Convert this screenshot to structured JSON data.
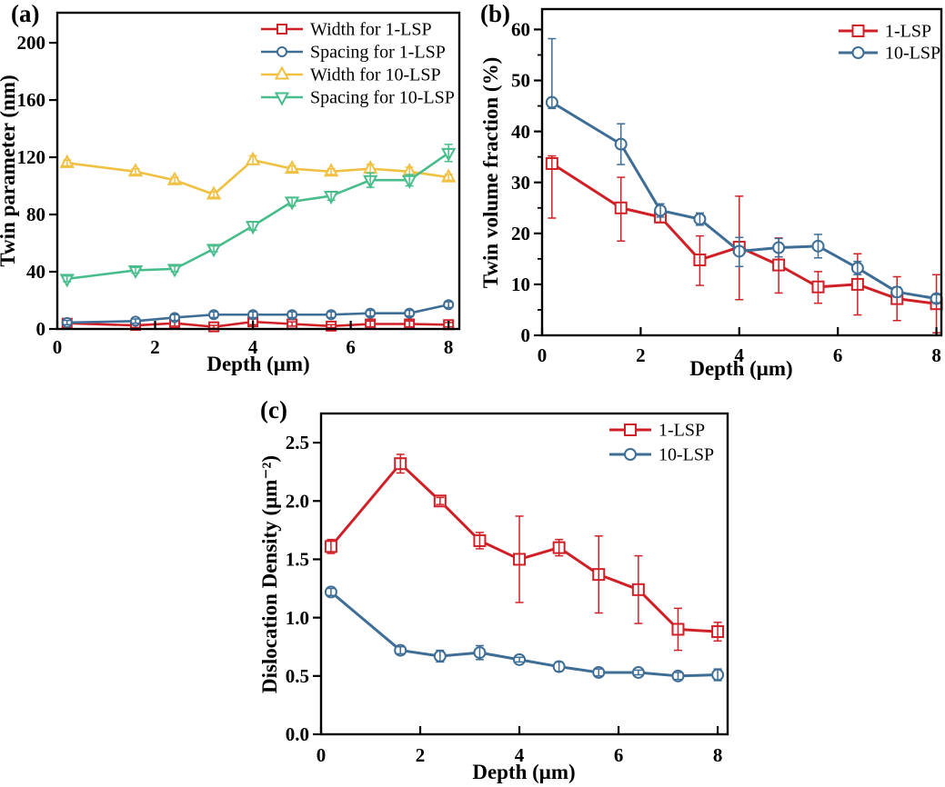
{
  "figure": {
    "background": "#ffffff",
    "text_color": "#000000"
  },
  "chart_data": [
    {
      "id": "a",
      "panel_label": "(a)",
      "type": "line",
      "title": "",
      "xlabel": "Depth (μm)",
      "ylabel": "Twin parameter (nm)",
      "xlim": [
        0,
        8.22
      ],
      "ylim": [
        0,
        221
      ],
      "xticks": {
        "major": [
          0,
          2,
          4,
          6,
          8
        ],
        "labels": [
          "0",
          "2",
          "4",
          "6",
          "8"
        ],
        "minor": []
      },
      "yticks": {
        "major": [
          0,
          40,
          80,
          120,
          160,
          200
        ],
        "labels": [
          "0",
          "40",
          "80",
          "120",
          "160",
          "200"
        ],
        "minor": []
      },
      "grid": false,
      "legend_position": "top-right",
      "x": [
        0.2,
        1.6,
        2.4,
        3.2,
        4.0,
        4.8,
        5.6,
        6.4,
        7.2,
        8.0
      ],
      "series": [
        {
          "name": "Width for 1-LSP",
          "color": "#d02027",
          "marker": "square",
          "values": [
            4,
            2.5,
            4,
            1.5,
            5,
            3.5,
            2,
            3.5,
            3.5,
            3
          ],
          "err_up": [
            1.5,
            1.5,
            2,
            1,
            2,
            1.5,
            1,
            2,
            2,
            1.5
          ],
          "err_down": [
            1.5,
            1.5,
            2,
            1,
            2,
            1.5,
            1,
            2,
            2,
            1.5
          ]
        },
        {
          "name": "Spacing for 1-LSP",
          "color": "#3e6d95",
          "marker": "circle",
          "values": [
            4.5,
            5.5,
            8,
            10,
            10,
            10,
            10,
            11,
            11,
            17
          ],
          "err_up": [
            1.5,
            1.5,
            2,
            2,
            2,
            2,
            2,
            2,
            2,
            2
          ],
          "err_down": [
            1.5,
            1.5,
            2,
            2,
            2,
            2,
            2,
            2,
            2,
            2
          ]
        },
        {
          "name": "Width for 10-LSP",
          "color": "#f0c042",
          "marker": "triangle-up",
          "values": [
            116,
            110,
            104,
            94,
            118,
            112,
            110,
            112,
            110,
            106
          ],
          "err_up": [
            2,
            2,
            2,
            2,
            3,
            2,
            2,
            3,
            3,
            2
          ],
          "err_down": [
            2,
            2,
            2,
            2,
            3,
            2,
            2,
            3,
            3,
            2
          ]
        },
        {
          "name": "Spacing for 10-LSP",
          "color": "#48bd8b",
          "marker": "triangle-down",
          "values": [
            35,
            41,
            42,
            56,
            72,
            89,
            93,
            104,
            104,
            123
          ],
          "err_up": [
            2,
            2,
            2,
            2,
            3,
            3,
            3,
            5,
            4,
            6
          ],
          "err_down": [
            2,
            2,
            2,
            2,
            3,
            3,
            3,
            5,
            4,
            6
          ]
        }
      ]
    },
    {
      "id": "b",
      "panel_label": "(b)",
      "type": "line",
      "title": "",
      "xlabel": "Depth (μm)",
      "ylabel": "Twin volume fraction (%)",
      "xlim": [
        0,
        8.1
      ],
      "ylim": [
        0,
        64
      ],
      "xticks": {
        "major": [
          0,
          2,
          4,
          6,
          8
        ],
        "labels": [
          "0",
          "2",
          "4",
          "6",
          "8"
        ],
        "minor": []
      },
      "yticks": {
        "major": [
          0,
          10,
          20,
          30,
          40,
          50,
          60
        ],
        "labels": [
          "0",
          "10",
          "20",
          "30",
          "40",
          "50",
          "60"
        ],
        "minor": [
          5,
          15,
          25,
          35,
          45,
          55
        ]
      },
      "grid": false,
      "legend_position": "top-right",
      "x": [
        0.2,
        1.6,
        2.4,
        3.2,
        4.0,
        4.8,
        5.6,
        6.4,
        7.2,
        8.0
      ],
      "series": [
        {
          "name": "1-LSP",
          "color": "#d02027",
          "marker": "square",
          "values": [
            33.7,
            25.0,
            23.2,
            14.8,
            17.3,
            13.8,
            9.5,
            10.0,
            7.2,
            6.2
          ],
          "err_up": [
            1.5,
            6.0,
            1.0,
            4.7,
            10.0,
            5.3,
            3.0,
            6.0,
            4.3,
            5.7
          ],
          "err_down": [
            10.7,
            6.5,
            1.0,
            5.0,
            10.3,
            5.5,
            3.2,
            6.0,
            4.3,
            5.7
          ]
        },
        {
          "name": "10-LSP",
          "color": "#3e6d95",
          "marker": "circle",
          "values": [
            45.7,
            37.5,
            24.5,
            22.8,
            16.5,
            17.2,
            17.5,
            13.2,
            8.5,
            7.2
          ],
          "err_up": [
            12.5,
            4.0,
            1.3,
            1.2,
            2.7,
            1.8,
            2.3,
            1.3,
            1.0,
            0.8
          ],
          "err_down": [
            1.2,
            4.0,
            1.3,
            1.2,
            3.0,
            1.8,
            2.3,
            1.3,
            1.0,
            0.8
          ]
        }
      ]
    },
    {
      "id": "c",
      "panel_label": "(c)",
      "type": "line",
      "title": "",
      "xlabel": "Depth (μm)",
      "ylabel": "Dislocation Density (μm⁻²)",
      "xlim": [
        0,
        8.2
      ],
      "ylim": [
        0,
        2.75
      ],
      "xticks": {
        "major": [
          0,
          2,
          4,
          6,
          8
        ],
        "labels": [
          "0",
          "2",
          "4",
          "6",
          "8"
        ],
        "minor": []
      },
      "yticks": {
        "major": [
          0,
          0.5,
          1.0,
          1.5,
          2.0,
          2.5
        ],
        "labels": [
          "0.0",
          "0.5",
          "1.0",
          "1.5",
          "2.0",
          "2.5"
        ],
        "minor": []
      },
      "grid": false,
      "legend_position": "top-right",
      "x": [
        0.2,
        1.6,
        2.4,
        3.2,
        4.0,
        4.8,
        5.6,
        6.4,
        7.2,
        8.0
      ],
      "series": [
        {
          "name": "1-LSP",
          "color": "#d02027",
          "marker": "square",
          "values": [
            1.61,
            2.32,
            2.0,
            1.66,
            1.5,
            1.6,
            1.37,
            1.24,
            0.9,
            0.88
          ],
          "err_up": [
            0.06,
            0.08,
            0.03,
            0.07,
            0.37,
            0.07,
            0.33,
            0.29,
            0.18,
            0.08
          ],
          "err_down": [
            0.06,
            0.08,
            0.03,
            0.07,
            0.37,
            0.07,
            0.33,
            0.29,
            0.18,
            0.08
          ]
        },
        {
          "name": "10-LSP",
          "color": "#3e6d95",
          "marker": "circle",
          "values": [
            1.22,
            0.72,
            0.67,
            0.7,
            0.64,
            0.58,
            0.53,
            0.53,
            0.5,
            0.51
          ],
          "err_up": [
            0.03,
            0.03,
            0.05,
            0.06,
            0.02,
            0.04,
            0.03,
            0.02,
            0.03,
            0.05
          ],
          "err_down": [
            0.03,
            0.03,
            0.05,
            0.06,
            0.02,
            0.04,
            0.03,
            0.02,
            0.03,
            0.05
          ]
        }
      ]
    }
  ]
}
